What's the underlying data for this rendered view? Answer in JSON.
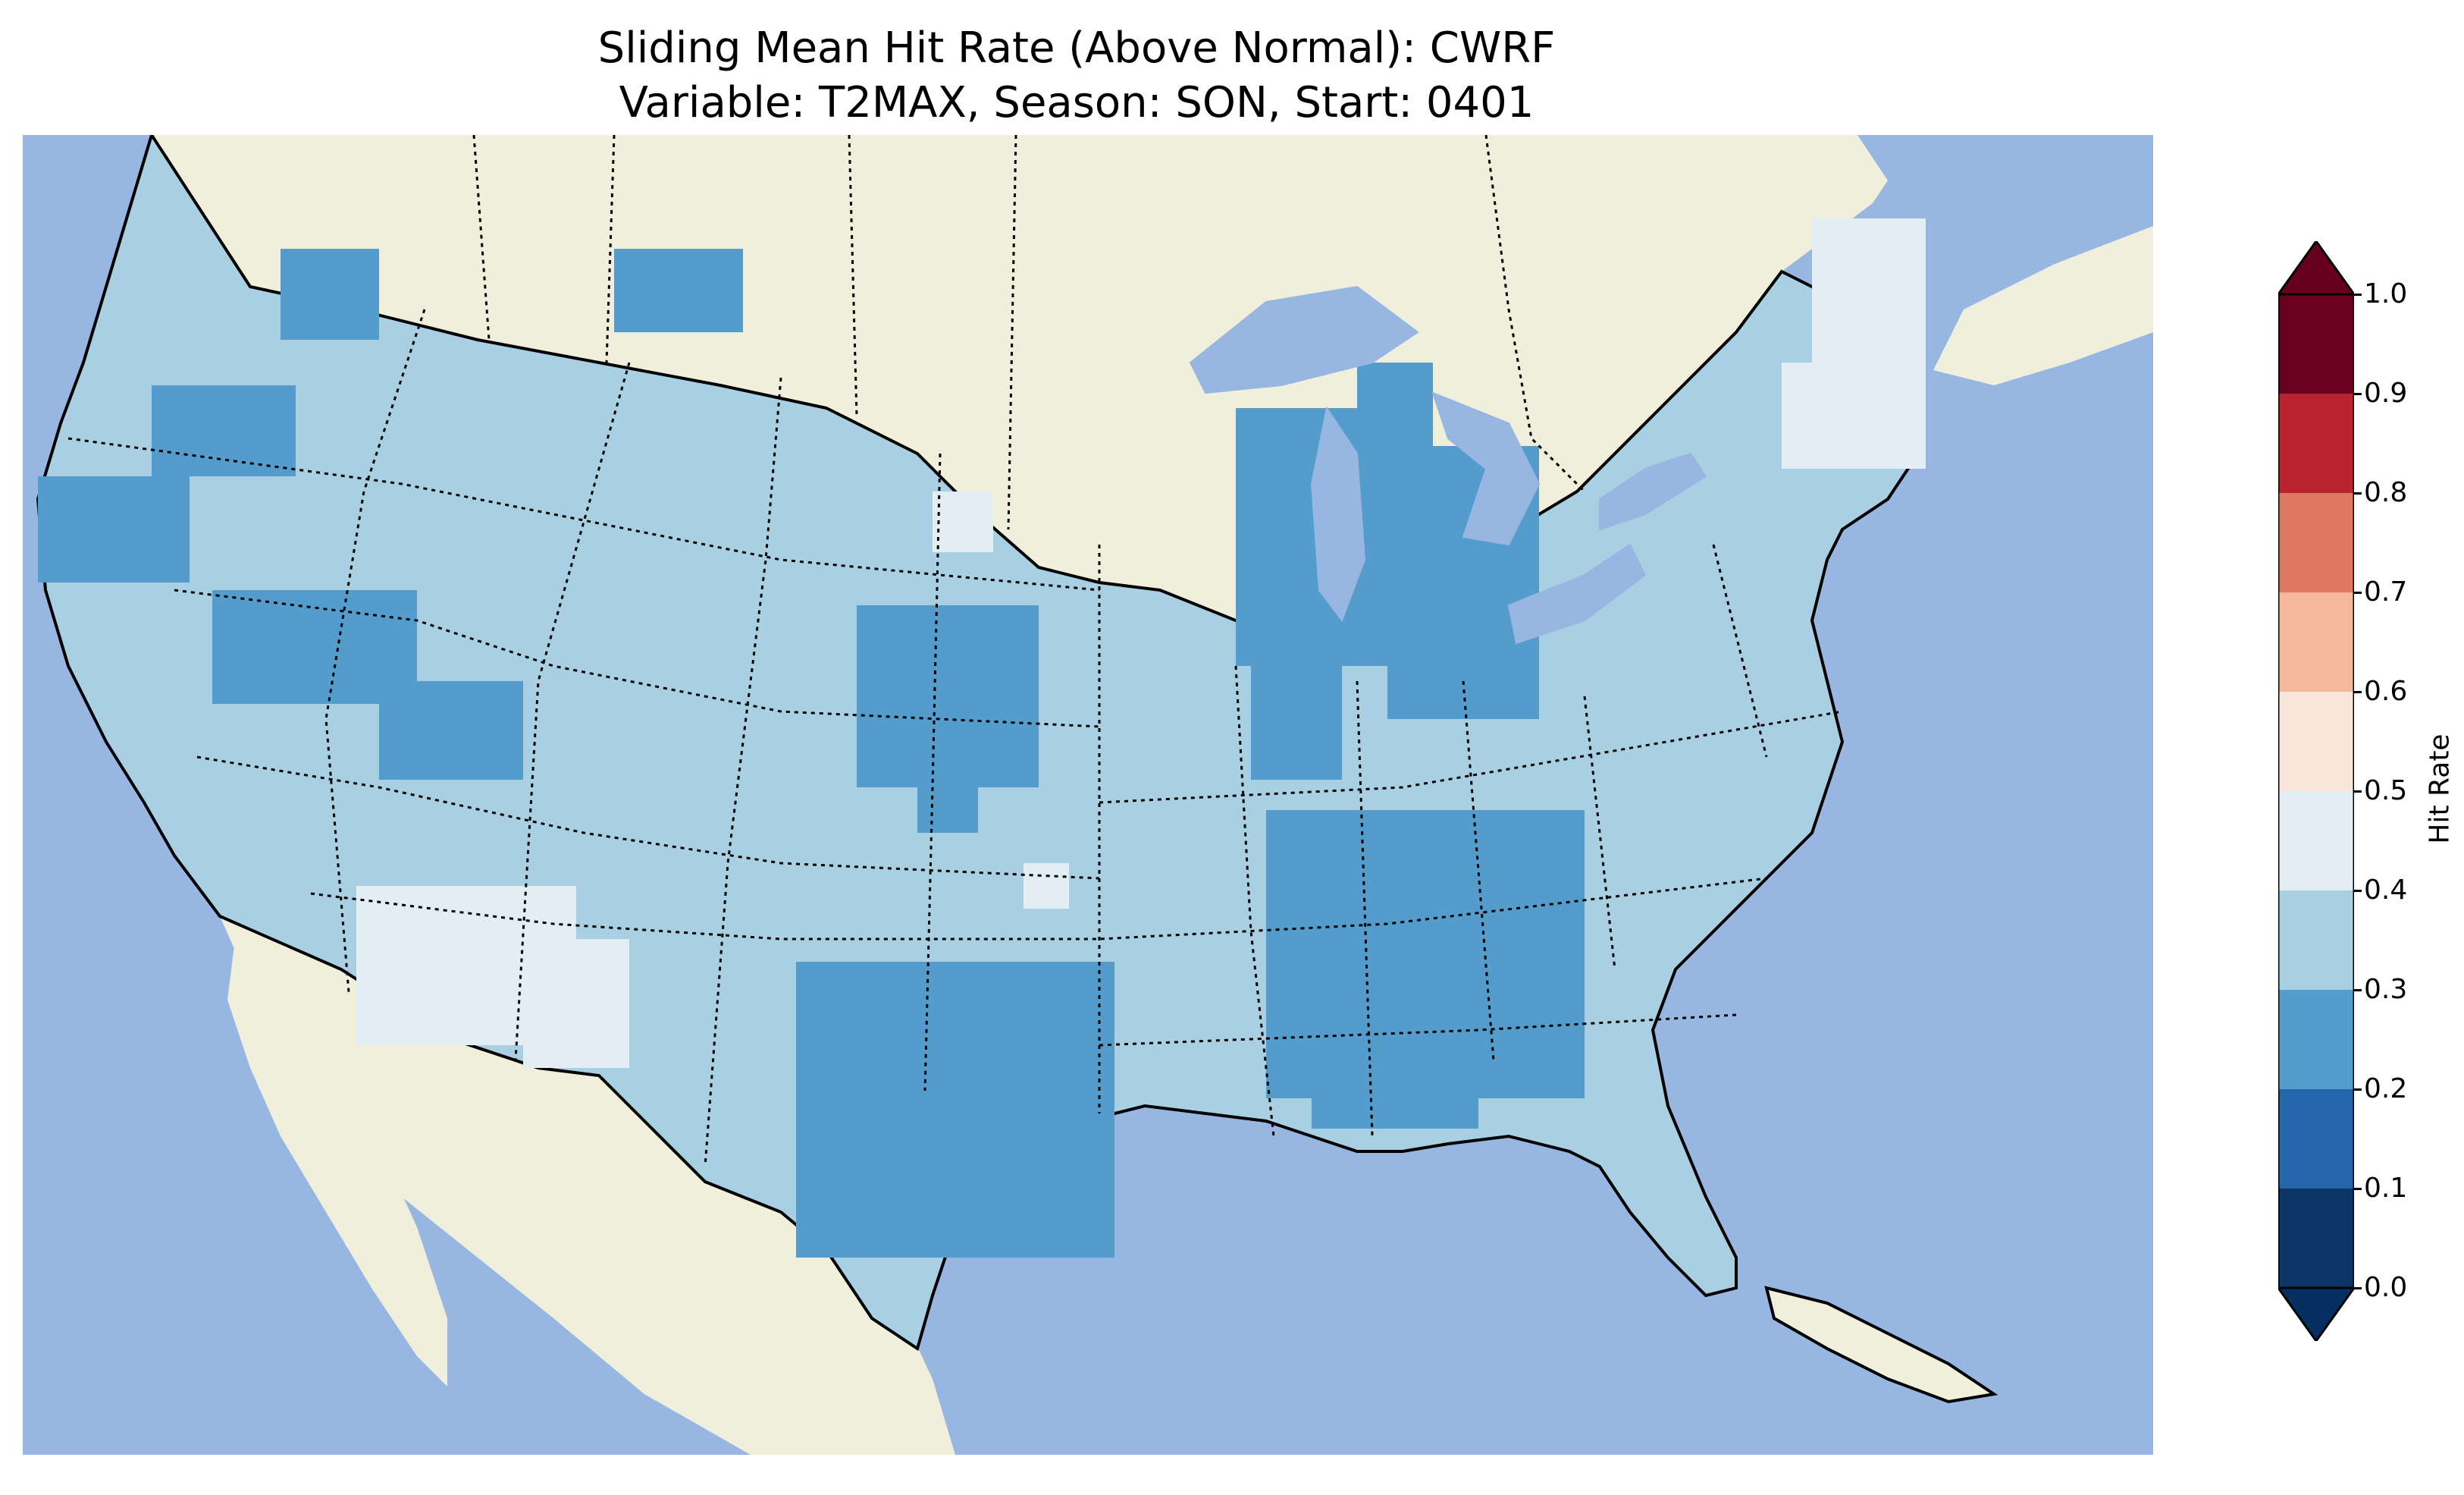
{
  "title": {
    "line1": "Sliding Mean Hit Rate (Above Normal): CWRF",
    "line2": "Variable: T2MAX, Season: SON, Start: 0401"
  },
  "map": {
    "ocean_color": "#97b6e1",
    "land_color": "#efefdb",
    "region": "Contiguous United States",
    "field_note": "Hit rate field mostly in 0.3-0.4 class, with 0.2-0.3 patches and 0.4-0.5 patches"
  },
  "colorbar": {
    "label": "Hit Rate",
    "extend": "both",
    "ticks": [
      "0.0",
      "0.1",
      "0.2",
      "0.3",
      "0.4",
      "0.5",
      "0.6",
      "0.7",
      "0.8",
      "0.9",
      "1.0"
    ],
    "colors": [
      "#053061",
      "#2166ac",
      "#4393c3",
      "#92c5de",
      "#d1e5f0",
      "#f7f7f7",
      "#fddbc7",
      "#f4a582",
      "#d6604d",
      "#b2182b",
      "#67001f"
    ],
    "bin_colors": [
      "#0b3567",
      "#2466ac",
      "#539ccb",
      "#a8cfe2",
      "#e2edf4",
      "#f8e5dc",
      "#f5b89b",
      "#df7861",
      "#b8232d",
      "#69001f"
    ],
    "under_color": "#053061",
    "over_color": "#67001f"
  }
}
